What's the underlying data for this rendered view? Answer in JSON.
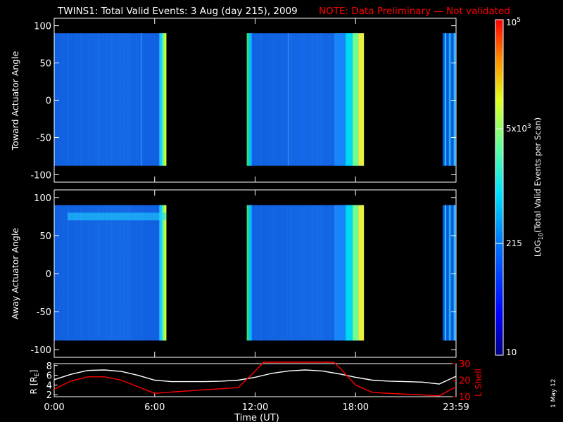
{
  "header": {
    "title": "TWINS1: Total Valid Events:  3 Aug (day 215), 2009",
    "note": "NOTE: Data Preliminary — Not validated",
    "note_color": "#ff0000"
  },
  "side_date": "1 May 12",
  "chart_data": [
    {
      "type": "heatmap",
      "panel": "toward",
      "ylabel": "Toward Actuator Angle",
      "ylim": [
        -110,
        110
      ],
      "yticks": [
        100,
        50,
        0,
        -50,
        -100
      ],
      "data_angle_range": [
        -88,
        90
      ],
      "x_unit": "hours UT",
      "coverage_hours": [
        [
          0.0,
          6.7
        ],
        [
          11.5,
          18.5
        ],
        [
          23.2,
          24.0
        ]
      ],
      "spectral_lines_hours": [
        5.2,
        14.0
      ],
      "grid": false
    },
    {
      "type": "heatmap",
      "panel": "away",
      "ylabel": "Away Actuator Angle",
      "ylim": [
        -110,
        110
      ],
      "yticks": [
        100,
        50,
        0,
        -50,
        -100
      ],
      "data_angle_range": [
        -88,
        90
      ],
      "x_unit": "hours UT",
      "coverage_hours": [
        [
          0.0,
          6.7
        ],
        [
          11.5,
          18.5
        ],
        [
          23.2,
          24.0
        ]
      ],
      "feature_band": {
        "hours": [
          0.8,
          6.7
        ],
        "angle": [
          70,
          80
        ]
      },
      "grid": false
    },
    {
      "type": "line",
      "panel": "orbit",
      "xlabel": "Time (UT)",
      "xticks": [
        "0:00",
        "6:00",
        "12:00",
        "18:00",
        "23:59"
      ],
      "xlim": [
        0,
        24
      ],
      "y_left_label": "R [R",
      "y_left_sub": "E",
      "y_left_close": "]",
      "y_left_ticks": [
        "8",
        "6",
        "4",
        "2"
      ],
      "y_left_lim": [
        1.6,
        8.4
      ],
      "y_right_label": "L Shell",
      "y_right_ticks": [
        "30",
        "20",
        "10"
      ],
      "y_right_lim": [
        10,
        30
      ],
      "y_right_color": "#ff0000",
      "series": [
        {
          "axis": "left",
          "color": "#ffffff",
          "x": [
            0,
            1,
            2,
            3,
            4,
            5,
            6,
            7,
            8,
            9,
            10,
            11,
            12,
            13,
            14,
            15,
            16,
            17,
            18,
            19,
            20,
            21,
            22,
            23,
            24
          ],
          "y": [
            5.1,
            6.2,
            7.0,
            7.1,
            6.8,
            6.0,
            5.0,
            4.7,
            4.7,
            4.7,
            4.8,
            5.0,
            5.6,
            6.4,
            6.9,
            7.1,
            6.9,
            6.3,
            5.6,
            5.0,
            4.8,
            4.7,
            4.6,
            4.2,
            5.8
          ]
        },
        {
          "axis": "right",
          "color": "#ff0000",
          "x": [
            0,
            1,
            2,
            3,
            4,
            5,
            6,
            7,
            8,
            9,
            10,
            11,
            12,
            12.5,
            16.7,
            17,
            18,
            19,
            20,
            21,
            22,
            23,
            24
          ],
          "y": [
            14.5,
            19.5,
            22.0,
            22.0,
            20.0,
            16.0,
            12.0,
            12.8,
            13.5,
            14.2,
            14.8,
            15.5,
            25.5,
            31.0,
            31.0,
            28.0,
            17.0,
            12.6,
            12.0,
            11.5,
            11.0,
            10.5,
            16.0
          ]
        }
      ]
    },
    {
      "type": "colorbar",
      "label_main": "LOG",
      "label_sub": "10",
      "label_rest": "(Total Valid  Events per Scan)",
      "scale": "log",
      "range": [
        10,
        100000
      ],
      "tick_labels": [
        {
          "value": 100000,
          "base": "10",
          "sup": "5"
        },
        {
          "value": 5000,
          "base": "5x10",
          "sup": "3"
        },
        {
          "value": 215,
          "base": "215",
          "sup": ""
        },
        {
          "value": 10,
          "base": "10",
          "sup": ""
        }
      ]
    }
  ]
}
